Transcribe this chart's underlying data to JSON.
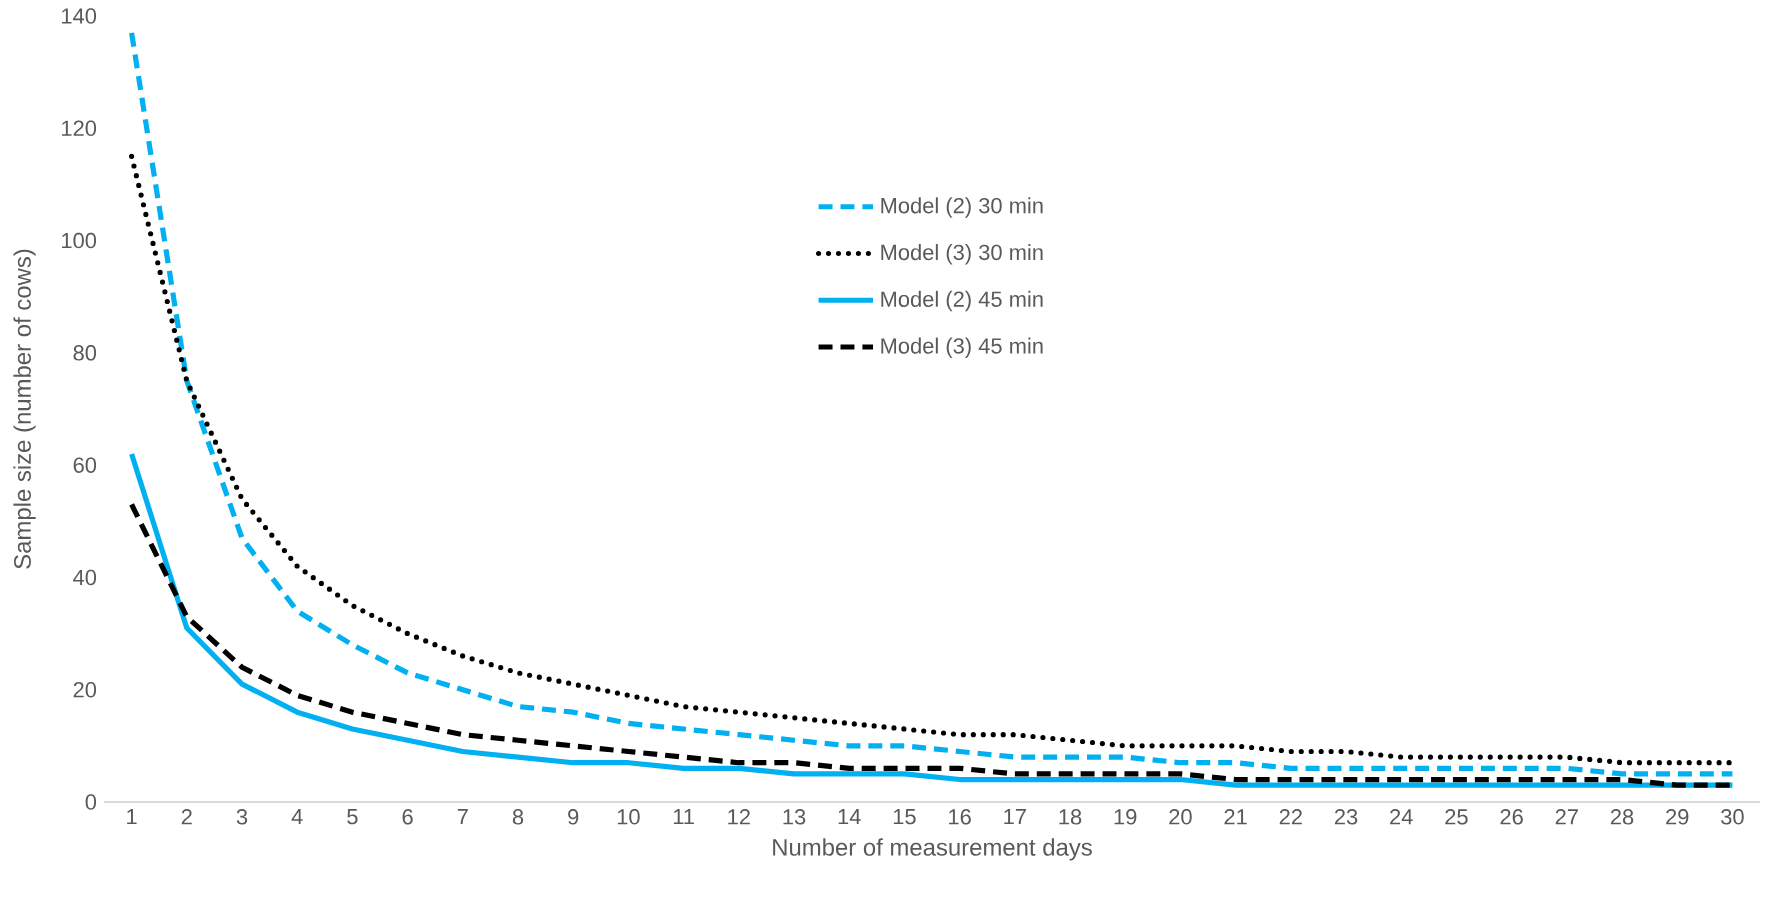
{
  "chart_data": {
    "type": "line",
    "xlabel": "Number of measurement days",
    "ylabel": "Sample size (number of cows)",
    "categories": [
      "1",
      "2",
      "3",
      "4",
      "5",
      "6",
      "7",
      "8",
      "9",
      "10",
      "11",
      "12",
      "13",
      "14",
      "15",
      "16",
      "17",
      "18",
      "19",
      "20",
      "21",
      "22",
      "23",
      "24",
      "25",
      "26",
      "27",
      "28",
      "29",
      "30"
    ],
    "ylim": [
      0,
      140
    ],
    "yticks": [
      0,
      20,
      40,
      60,
      80,
      100,
      120,
      140
    ],
    "grid": false,
    "legend": "top",
    "marker": "none",
    "series": [
      {
        "name": "Model (2) 30 min",
        "color": "#00b0f0",
        "line_style": "dashed",
        "values": [
          137,
          75,
          47,
          34,
          28,
          23,
          20,
          17,
          16,
          14,
          13,
          12,
          11,
          10,
          10,
          9,
          8,
          8,
          8,
          7,
          7,
          6,
          6,
          6,
          6,
          6,
          6,
          5,
          5,
          5
        ]
      },
      {
        "name": "Model (3) 30 min",
        "color": "#000000",
        "line_style": "dotted",
        "values": [
          115,
          75,
          54,
          42,
          35,
          30,
          26,
          23,
          21,
          19,
          17,
          16,
          15,
          14,
          13,
          12,
          12,
          11,
          10,
          10,
          10,
          9,
          9,
          8,
          8,
          8,
          8,
          7,
          7,
          7
        ]
      },
      {
        "name": "Model (2) 45 min",
        "color": "#00b0f0",
        "line_style": "solid",
        "values": [
          62,
          31,
          21,
          16,
          13,
          11,
          9,
          8,
          7,
          7,
          6,
          6,
          5,
          5,
          5,
          4,
          4,
          4,
          4,
          4,
          3,
          3,
          3,
          3,
          3,
          3,
          3,
          3,
          3,
          3
        ]
      },
      {
        "name": "Model (3) 45 min",
        "color": "#000000",
        "line_style": "dashed",
        "values": [
          53,
          33,
          24,
          19,
          16,
          14,
          12,
          11,
          10,
          9,
          8,
          7,
          7,
          6,
          6,
          6,
          5,
          5,
          5,
          5,
          4,
          4,
          4,
          4,
          4,
          4,
          4,
          4,
          3,
          3
        ]
      }
    ]
  }
}
